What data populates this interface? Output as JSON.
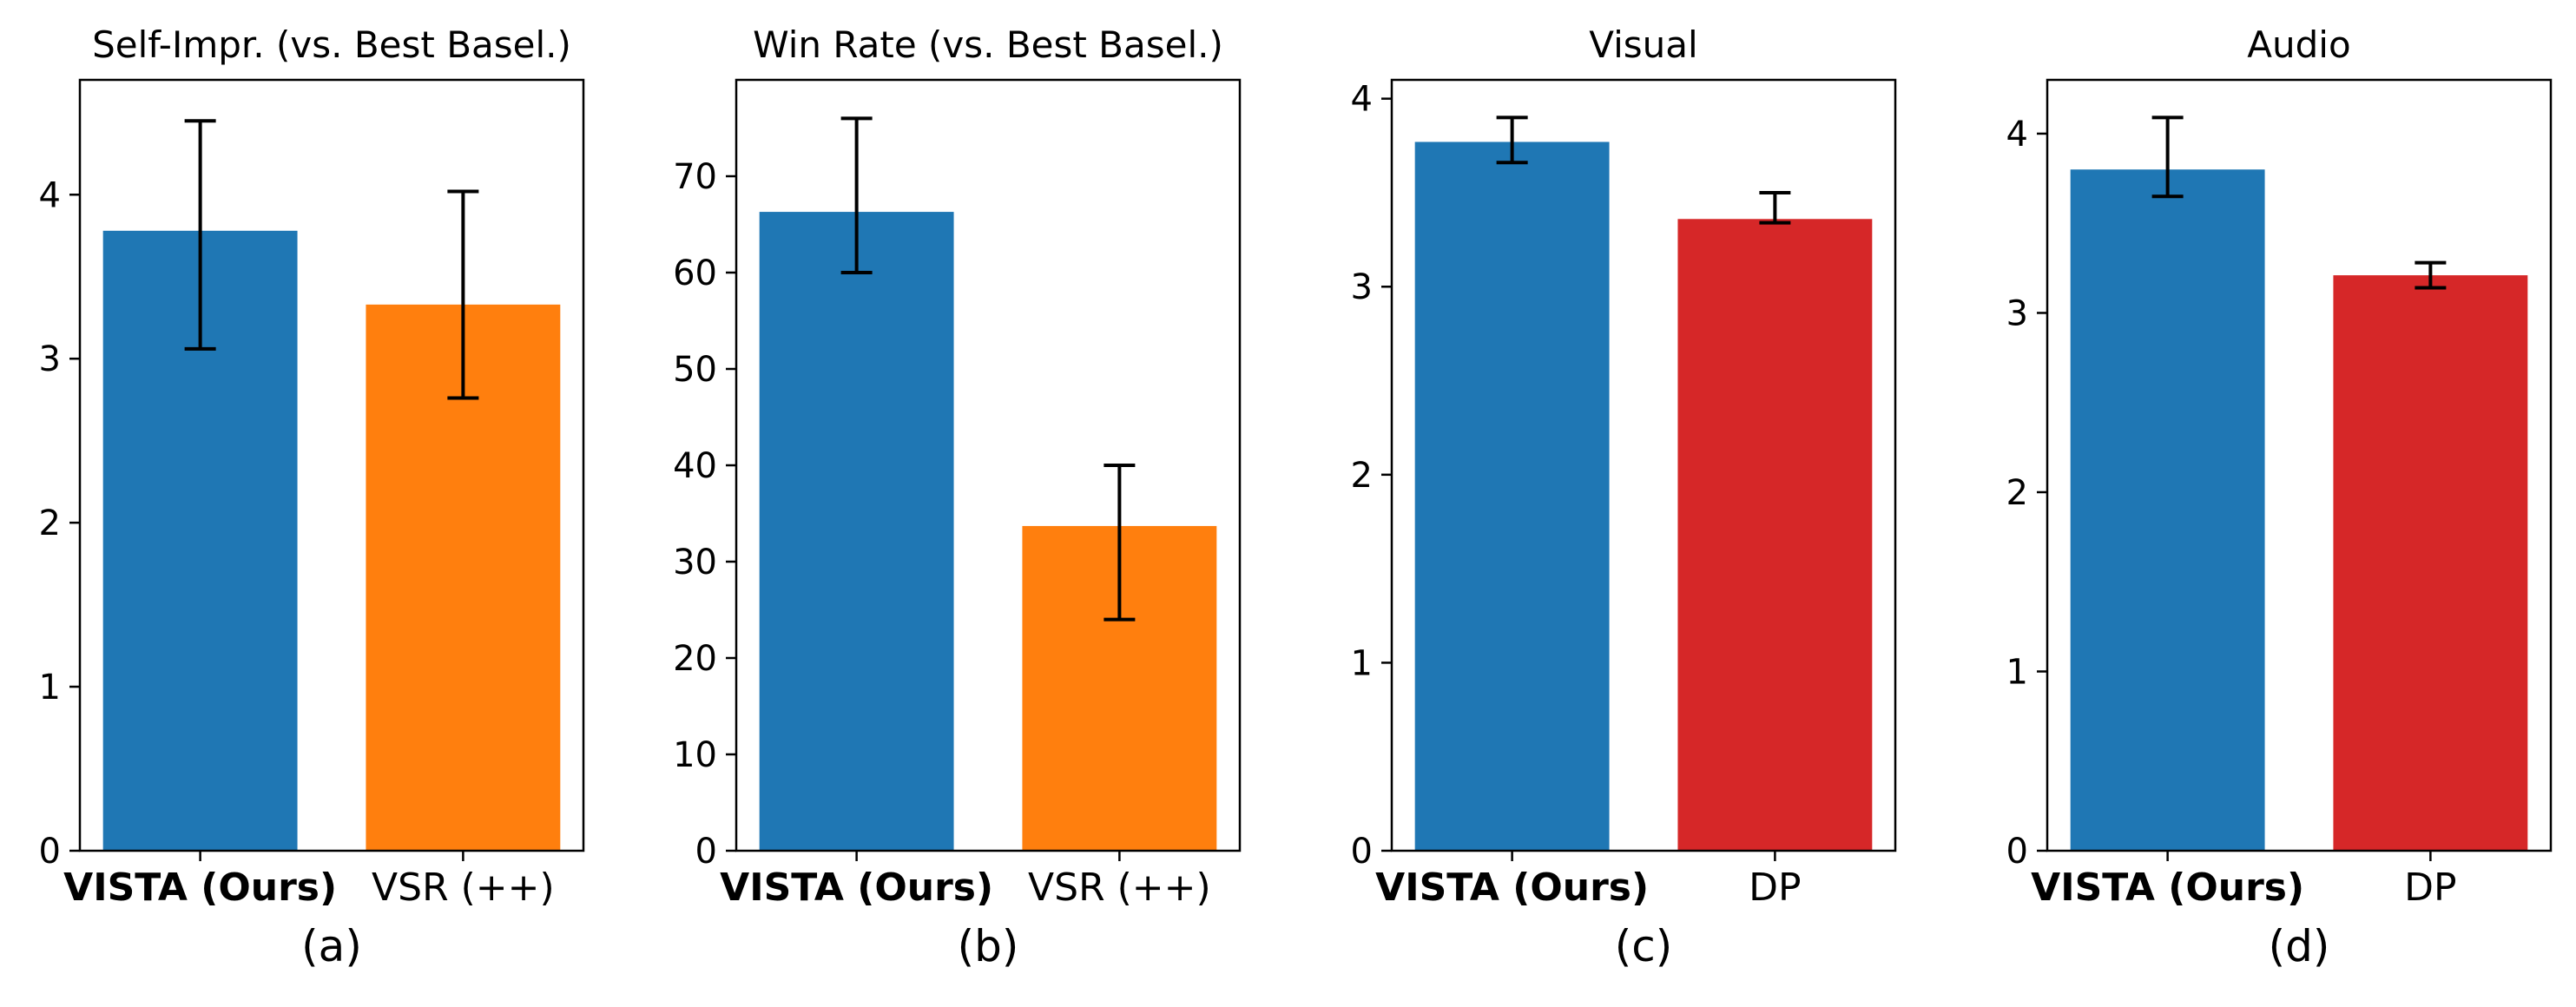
{
  "colors": {
    "blue": "#1f77b4",
    "orange": "#ff7f0e",
    "red": "#d62728",
    "error_bar": "#000000",
    "axis": "#000000"
  },
  "chart_data": [
    {
      "type": "bar",
      "title": "Self-Impr. (vs. Best Basel.)",
      "panel_label": "(a)",
      "categories": [
        "VISTA (Ours)",
        "VSR (++)"
      ],
      "bold_categories": [
        "VISTA (Ours)"
      ],
      "values": [
        3.78,
        3.33
      ],
      "error_low": [
        3.06,
        2.76
      ],
      "error_high": [
        4.45,
        4.02
      ],
      "bar_colors": [
        "#1f77b4",
        "#ff7f0e"
      ],
      "ylim": [
        0,
        4.7
      ],
      "yticks": [
        0,
        1,
        2,
        3,
        4
      ],
      "xlabel": "",
      "ylabel": ""
    },
    {
      "type": "bar",
      "title": "Win Rate (vs. Best Basel.)",
      "panel_label": "(b)",
      "categories": [
        "VISTA (Ours)",
        "VSR (++)"
      ],
      "bold_categories": [
        "VISTA (Ours)"
      ],
      "values": [
        66.3,
        33.7
      ],
      "error_low": [
        60.0,
        24.0
      ],
      "error_high": [
        76.0,
        40.0
      ],
      "bar_colors": [
        "#1f77b4",
        "#ff7f0e"
      ],
      "ylim": [
        0,
        80
      ],
      "yticks": [
        0,
        10,
        20,
        30,
        40,
        50,
        60,
        70
      ],
      "xlabel": "",
      "ylabel": ""
    },
    {
      "type": "bar",
      "title": "Visual",
      "panel_label": "(c)",
      "categories": [
        "VISTA (Ours)",
        "DP"
      ],
      "bold_categories": [
        "VISTA (Ours)"
      ],
      "values": [
        3.77,
        3.36
      ],
      "error_low": [
        3.66,
        3.34
      ],
      "error_high": [
        3.9,
        3.5
      ],
      "bar_colors": [
        "#1f77b4",
        "#d62728"
      ],
      "ylim": [
        0,
        4.1
      ],
      "yticks": [
        0,
        1,
        2,
        3,
        4
      ],
      "xlabel": "",
      "ylabel": ""
    },
    {
      "type": "bar",
      "title": "Audio",
      "panel_label": "(d)",
      "categories": [
        "VISTA (Ours)",
        "DP"
      ],
      "bold_categories": [
        "VISTA (Ours)"
      ],
      "values": [
        3.8,
        3.21
      ],
      "error_low": [
        3.65,
        3.14
      ],
      "error_high": [
        4.09,
        3.28
      ],
      "bar_colors": [
        "#1f77b4",
        "#d62728"
      ],
      "ylim": [
        0,
        4.3
      ],
      "yticks": [
        0,
        1,
        2,
        3,
        4
      ],
      "xlabel": "",
      "ylabel": ""
    }
  ]
}
